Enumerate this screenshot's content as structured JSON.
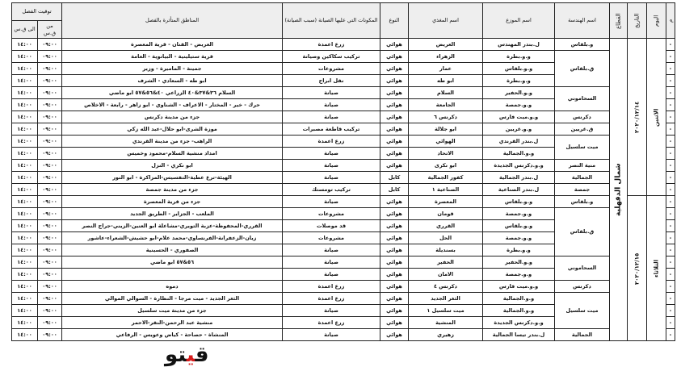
{
  "header": {
    "num": "م",
    "day": "اليوم",
    "date": "التاريخ",
    "sector": "القطاع",
    "engineering": "اسم الهندسة",
    "distributor": "اسم الموزع",
    "feeder": "اسم المغذي",
    "type": "النوع",
    "work": "المكونات التي عليها الصيانة (سبب الصيانة)",
    "areas": "المناطق المتأثرة بالفصل",
    "time": "توقيت الفصل",
    "from": "من ق.س",
    "to": "الى ق.س"
  },
  "sector": "شمال الدقهلية",
  "time_from": "٠٩:٠٠",
  "time_to": "١٤:٠٠",
  "watermark": "قيتو",
  "days": [
    {
      "day": "الاثنين",
      "date": "٢٠٢٠/١٢/١٤",
      "groups": [
        {
          "eng": "و.بلقاس",
          "rows": [
            [
              "العريض - القنان - قرية المعصرة",
              "زرع اعمدة",
              "هوائي",
              "العريض",
              "ل.بندر المهندس"
            ]
          ]
        },
        {
          "eng": "ق.بلقاس",
          "rows": [
            [
              "قرية ستيلينية - البيانوية - العامة",
              "تركيب سكاكين وصيانة",
              "هوائي",
              "الزهراء",
              "و.و.بطرة"
            ],
            [
              "جمينة - الماميرة - وزير",
              "مشروعات",
              "هوائي",
              "عمار",
              "و.و.بلقاس"
            ],
            [
              "ابو طه - السعادي - الشرف",
              "نقل ابراج",
              "هوائي",
              "ابو طه",
              "و.و.بطرة"
            ]
          ]
        },
        {
          "eng": "السحاموني",
          "rows": [
            [
              "السلام ٣٦&٣٧&٤٠ الزراعي ٤٠&٥٦&٥٧ ابو ماضي",
              "صيانة",
              "هوائي",
              "السلام",
              "و.و.الحفير"
            ],
            [
              "حرك - خير - المختار - الاعراف - الشناوي - ابو زاهر - رابعة - الاخلاص",
              "صيانة",
              "هوائي",
              "الجامعة",
              "و.و.جمصة"
            ]
          ]
        },
        {
          "eng": "دكرنس",
          "rows": [
            [
              "جزء من مدينة دكرنس",
              "صيانة",
              "هوائي",
              "دكرنس ٦",
              "و.و.ميت فارس"
            ]
          ]
        },
        {
          "eng": "ق.غريين",
          "rows": [
            [
              "موزة الشرى-ابو حلال-عبد الله زكي",
              "تركيب قاطعة مصبرات",
              "هوائي",
              "ابو جلالة",
              "و.و.غريين"
            ]
          ]
        },
        {
          "eng": "ميت سلسيل",
          "rows": [
            [
              "الراهب- جزء من مدينة القرندي",
              "زرع اعمدة",
              "هوائي",
              "الهوائي",
              "ل.بندر القرندي"
            ],
            [
              "امداد منشية السلام-محمود وخميس",
              "صيانة",
              "هوائي",
              "الاتحاد",
              "و.و.الجمالية"
            ]
          ]
        },
        {
          "eng": "منية النصر",
          "rows": [
            [
              "ابو نكري - النزل",
              "صيانة",
              "هوائي",
              "ابو نكرى",
              "و.و.دكرنس الجديدة"
            ]
          ]
        },
        {
          "eng": "الجمالية",
          "rows": [
            [
              "الهيئة-ترع عطية-التفسيس-المزاكرة - ابو النور",
              "صيانة",
              "كابل",
              "كفور الجمالية",
              "ل.بندر الجمالية"
            ]
          ]
        },
        {
          "eng": "جمصة",
          "rows": [
            [
              "جزء من مدينة جمصة",
              "تركيب تومستك",
              "كابل",
              "الصناعية ١",
              "ل.بندر الصناعية"
            ]
          ]
        }
      ]
    },
    {
      "day": "الثلاثاء",
      "date": "٢٠٢٠/١٢/١٥",
      "groups": [
        {
          "eng": "و.بلقاس",
          "rows": [
            [
              "جزء من قرية المعصرة",
              "صيانة",
              "هوائي",
              "المعصرة",
              "و.و.بلقاس"
            ]
          ]
        },
        {
          "eng": "ق.بلقاس",
          "rows": [
            [
              "الملعب - الجزاير - الطريق الجديد",
              "مشروعات",
              "هوائي",
              "قومان",
              "و.و.جمصة"
            ],
            [
              "القرري-المحفوظة-عزبة التويري-مشاعلة ابو العنين-الزيني-جراج النصر",
              "قد موصلات",
              "هوائي",
              "القرري",
              "و.و.بلقاس"
            ],
            [
              "زيان-الزعفرانة-الفرنساوي-محمد علام-ابو حشيش-الشعراء-عاشور",
              "مشروعات",
              "هوائي",
              "الحل",
              "و.و.جمصة"
            ],
            [
              "الصفوري - الحسينية",
              "صيانة",
              "هوائي",
              "بسنديلة",
              "و.و.بطرة"
            ]
          ]
        },
        {
          "eng": "السحاموني",
          "rows": [
            [
              "٥٦&٥٧ ابو ماضي",
              "صيانة",
              "هوائي",
              "الحفير",
              "و.و.الحفير"
            ],
            [
              "",
              "صيانة",
              "هوائي",
              "الامان",
              "و.و.جمصة"
            ]
          ]
        },
        {
          "eng": "دكرنس",
          "rows": [
            [
              "دموه",
              "زرع اعمدة",
              "هوائي",
              "دكرنس ٤",
              "و.و.ميت فارس"
            ]
          ]
        },
        {
          "eng": "ميت سلسيل",
          "rows": [
            [
              "الثغر الجديد - ميت مرجا - النظارة - السوالي الموالي",
              "زرع اعمدة",
              "هوائي",
              "الثغر الجديد",
              "و.و.الجمالية"
            ],
            [
              "جزء من مدينة ميت سلسيل",
              "صيانة",
              "هوائي",
              "ميت سلسيل ١",
              "و.و.الجمالية"
            ],
            [
              "منشية عبد الرحمن-النقر-الاحمر",
              "زرع اعمدة",
              "هوائي",
              "المنشية",
              "و.و.دكرنس الجديدة"
            ]
          ]
        },
        {
          "eng": "الجمالية",
          "rows": [
            [
              "المنشاة - حصاحة - كياض وعويس - الرفاعي",
              "صيانة",
              "هوائي",
              "زهيري",
              "ل.بندر تيسا الجمالية"
            ]
          ]
        }
      ]
    }
  ]
}
